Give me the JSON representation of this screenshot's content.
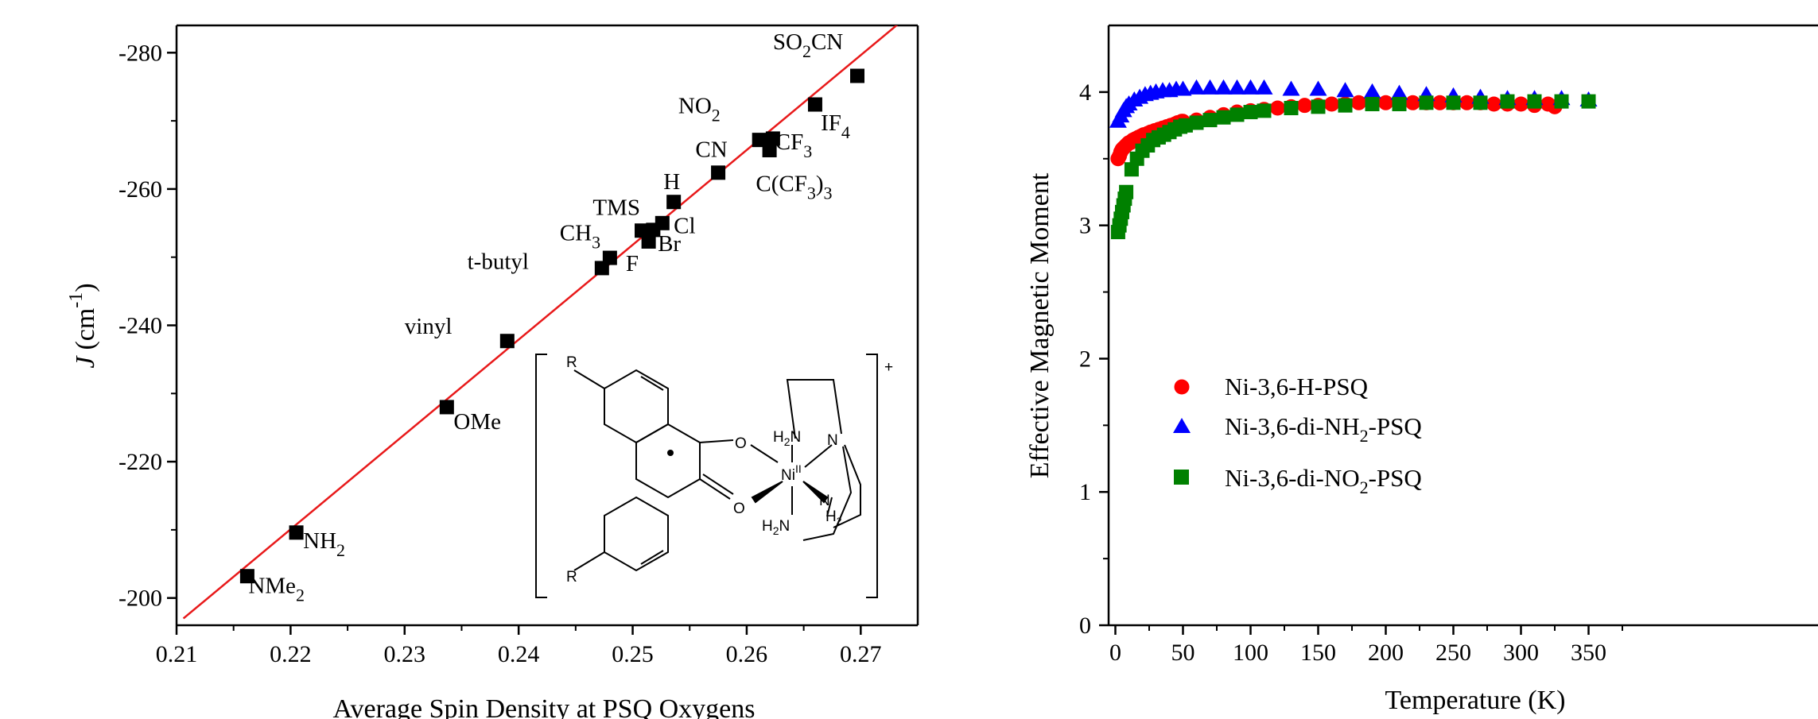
{
  "chart_data": [
    {
      "type": "scatter",
      "xlabel": "Average Spin Density at PSQ Oxygens",
      "ylabel": {
        "symbol": "J",
        "unit": "(cm",
        "sup": "-1",
        "close": ")"
      },
      "xlim": [
        0.21,
        0.275
      ],
      "ylim": [
        -196,
        -284
      ],
      "xticks": [
        "0.21",
        "0.22",
        "0.23",
        "0.24",
        "0.25",
        "0.26",
        "0.27"
      ],
      "yticks": [
        "-200",
        "-220",
        "-240",
        "-260",
        "-280"
      ],
      "grid": false,
      "points": [
        {
          "x": 0.2162,
          "y": -203.2
        },
        {
          "x": 0.2205,
          "y": -209.6
        },
        {
          "x": 0.2337,
          "y": -228.0
        },
        {
          "x": 0.239,
          "y": -237.7
        },
        {
          "x": 0.2473,
          "y": -248.4
        },
        {
          "x": 0.248,
          "y": -249.9
        },
        {
          "x": 0.2508,
          "y": -253.9
        },
        {
          "x": 0.2514,
          "y": -252.3
        },
        {
          "x": 0.2518,
          "y": -254.0
        },
        {
          "x": 0.2526,
          "y": -255.0
        },
        {
          "x": 0.2536,
          "y": -258.1
        },
        {
          "x": 0.2575,
          "y": -262.4
        },
        {
          "x": 0.2611,
          "y": -267.2
        },
        {
          "x": 0.262,
          "y": -265.7
        },
        {
          "x": 0.2623,
          "y": -267.4
        },
        {
          "x": 0.266,
          "y": -272.4
        },
        {
          "x": 0.2697,
          "y": -276.6
        }
      ],
      "fit_line": {
        "x": [
          0.2106,
          0.274
        ],
        "y": [
          -197.0,
          -285.2
        ],
        "color": "#e8191a"
      },
      "annotations": [
        {
          "text": "NMe",
          "sub": "2",
          "x": 0.2163,
          "y": -200.7
        },
        {
          "text": "NH",
          "sub": "2",
          "x": 0.2211,
          "y": -207.3
        },
        {
          "text": "OMe",
          "x": 0.2343,
          "y": -224.8
        },
        {
          "text": "vinyl",
          "x": 0.23,
          "y": -238.8
        },
        {
          "text": "t-butyl",
          "x": 0.2355,
          "y": -248.3
        },
        {
          "text": "F",
          "x": 0.2494,
          "y": -248.0
        },
        {
          "text": "CH",
          "sub": "3",
          "x": 0.2436,
          "y": -252.5
        },
        {
          "text": "TMS",
          "x": 0.2465,
          "y": -256.2
        },
        {
          "text": "Br",
          "x": 0.2522,
          "y": -250.9
        },
        {
          "text": "Cl",
          "x": 0.2536,
          "y": -253.5
        },
        {
          "text": "H",
          "x": 0.2527,
          "y": -260.0
        },
        {
          "text": "CN",
          "x": 0.2555,
          "y": -264.7
        },
        {
          "text": "NO",
          "sub": "2",
          "x": 0.254,
          "y": -271.1
        },
        {
          "text": "CF",
          "sub": "3",
          "x": 0.2625,
          "y": -265.8
        },
        {
          "text": "C(CF",
          "sub": "3",
          "tail": ")",
          "sub2": "3",
          "x": 0.2608,
          "y": -259.7
        },
        {
          "text": "IF",
          "sub": "4",
          "x": 0.2665,
          "y": -268.6
        },
        {
          "text": "SO",
          "sub": "2",
          "tail": "CN",
          "x": 0.2623,
          "y": -280.5
        }
      ],
      "inset_labels": {
        "r": "R",
        "o": "O",
        "n": "N",
        "h": "H",
        "nh2": "NH",
        "two": "2",
        "ni": "Ni",
        "ox": "II",
        "charge": "+"
      }
    },
    {
      "type": "scatter",
      "xlabel": "Temperature (K)",
      "ylabel": "Effective Magnetic Moment",
      "xlim": [
        -5,
        360
      ],
      "ylim": [
        0,
        4.5
      ],
      "xticks": [
        "0",
        "50",
        "100",
        "150",
        "200",
        "250",
        "300",
        "350"
      ],
      "yticks": [
        "0",
        "1",
        "2",
        "3",
        "4"
      ],
      "grid": false,
      "legend_position": "center-left",
      "series": [
        {
          "name": "Ni-3,6-H-PSQ",
          "legend_main": "Ni-3,6-H-PSQ",
          "marker": "circle",
          "color": "#ff0000",
          "points": [
            [
              2,
              3.5
            ],
            [
              3,
              3.52
            ],
            [
              4,
              3.55
            ],
            [
              5,
              3.57
            ],
            [
              6,
              3.58
            ],
            [
              7,
              3.59
            ],
            [
              8,
              3.6
            ],
            [
              9,
              3.61
            ],
            [
              10,
              3.62
            ],
            [
              11,
              3.62
            ],
            [
              12,
              3.63
            ],
            [
              13,
              3.64
            ],
            [
              14,
              3.64
            ],
            [
              15,
              3.65
            ],
            [
              16,
              3.65
            ],
            [
              17,
              3.66
            ],
            [
              18,
              3.66
            ],
            [
              19,
              3.67
            ],
            [
              20,
              3.67
            ],
            [
              21,
              3.68
            ],
            [
              22,
              3.68
            ],
            [
              23,
              3.68
            ],
            [
              24,
              3.69
            ],
            [
              25,
              3.69
            ],
            [
              26,
              3.7
            ],
            [
              27,
              3.7
            ],
            [
              28,
              3.7
            ],
            [
              29,
              3.71
            ],
            [
              30,
              3.71
            ],
            [
              31,
              3.71
            ],
            [
              32,
              3.72
            ],
            [
              33,
              3.72
            ],
            [
              34,
              3.72
            ],
            [
              35,
              3.73
            ],
            [
              36,
              3.73
            ],
            [
              37,
              3.73
            ],
            [
              38,
              3.74
            ],
            [
              39,
              3.74
            ],
            [
              40,
              3.74
            ],
            [
              41,
              3.75
            ],
            [
              42,
              3.75
            ],
            [
              43,
              3.75
            ],
            [
              44,
              3.76
            ],
            [
              45,
              3.76
            ],
            [
              46,
              3.77
            ],
            [
              47,
              3.77
            ],
            [
              48,
              3.77
            ],
            [
              49,
              3.78
            ],
            [
              50,
              3.78
            ],
            [
              60,
              3.79
            ],
            [
              70,
              3.81
            ],
            [
              80,
              3.83
            ],
            [
              90,
              3.85
            ],
            [
              100,
              3.86
            ],
            [
              110,
              3.87
            ],
            [
              120,
              3.88
            ],
            [
              130,
              3.89
            ],
            [
              140,
              3.9
            ],
            [
              150,
              3.9
            ],
            [
              160,
              3.91
            ],
            [
              170,
              3.91
            ],
            [
              180,
              3.92
            ],
            [
              190,
              3.92
            ],
            [
              200,
              3.92
            ],
            [
              210,
              3.92
            ],
            [
              220,
              3.92
            ],
            [
              230,
              3.92
            ],
            [
              240,
              3.92
            ],
            [
              250,
              3.92
            ],
            [
              260,
              3.92
            ],
            [
              270,
              3.92
            ],
            [
              280,
              3.91
            ],
            [
              290,
              3.91
            ],
            [
              300,
              3.91
            ],
            [
              310,
              3.9
            ],
            [
              320,
              3.91
            ],
            [
              325,
              3.89
            ]
          ]
        },
        {
          "name": "Ni-3,6-di-NH2-PSQ",
          "legend_main": "Ni-3,6-di-NH",
          "legend_sub": "2",
          "legend_tail": "-PSQ",
          "marker": "triangle",
          "color": "#0000ff",
          "points": [
            [
              2,
              3.78
            ],
            [
              4,
              3.82
            ],
            [
              6,
              3.86
            ],
            [
              8,
              3.89
            ],
            [
              10,
              3.91
            ],
            [
              14,
              3.94
            ],
            [
              18,
              3.96
            ],
            [
              22,
              3.98
            ],
            [
              26,
              3.99
            ],
            [
              30,
              4.0
            ],
            [
              35,
              4.01
            ],
            [
              40,
              4.01
            ],
            [
              45,
              4.02
            ],
            [
              50,
              4.02
            ],
            [
              60,
              4.03
            ],
            [
              70,
              4.03
            ],
            [
              80,
              4.03
            ],
            [
              90,
              4.03
            ],
            [
              100,
              4.03
            ],
            [
              110,
              4.03
            ],
            [
              130,
              4.02
            ],
            [
              150,
              4.02
            ],
            [
              170,
              4.01
            ],
            [
              190,
              4.0
            ],
            [
              210,
              3.99
            ],
            [
              230,
              3.98
            ],
            [
              250,
              3.97
            ],
            [
              270,
              3.96
            ],
            [
              290,
              3.95
            ],
            [
              310,
              3.95
            ],
            [
              330,
              3.95
            ],
            [
              350,
              3.94
            ]
          ]
        },
        {
          "name": "Ni-3,6-di-NO2-PSQ",
          "legend_main": "Ni-3,6-di-NO",
          "legend_sub": "2",
          "legend_tail": "-PSQ",
          "marker": "square",
          "color": "#008000",
          "points": [
            [
              2,
              2.95
            ],
            [
              3,
              3.0
            ],
            [
              4,
              3.05
            ],
            [
              5,
              3.1
            ],
            [
              6,
              3.15
            ],
            [
              7,
              3.2
            ],
            [
              8,
              3.25
            ],
            [
              12,
              3.42
            ],
            [
              16,
              3.5
            ],
            [
              20,
              3.56
            ],
            [
              24,
              3.6
            ],
            [
              28,
              3.64
            ],
            [
              32,
              3.66
            ],
            [
              36,
              3.68
            ],
            [
              40,
              3.7
            ],
            [
              44,
              3.72
            ],
            [
              48,
              3.74
            ],
            [
              52,
              3.75
            ],
            [
              60,
              3.77
            ],
            [
              70,
              3.79
            ],
            [
              80,
              3.81
            ],
            [
              90,
              3.83
            ],
            [
              100,
              3.85
            ],
            [
              110,
              3.86
            ],
            [
              130,
              3.88
            ],
            [
              150,
              3.89
            ],
            [
              170,
              3.9
            ],
            [
              190,
              3.91
            ],
            [
              210,
              3.91
            ],
            [
              230,
              3.92
            ],
            [
              250,
              3.92
            ],
            [
              270,
              3.92
            ],
            [
              290,
              3.93
            ],
            [
              310,
              3.93
            ],
            [
              330,
              3.93
            ],
            [
              350,
              3.93
            ]
          ]
        }
      ]
    }
  ]
}
